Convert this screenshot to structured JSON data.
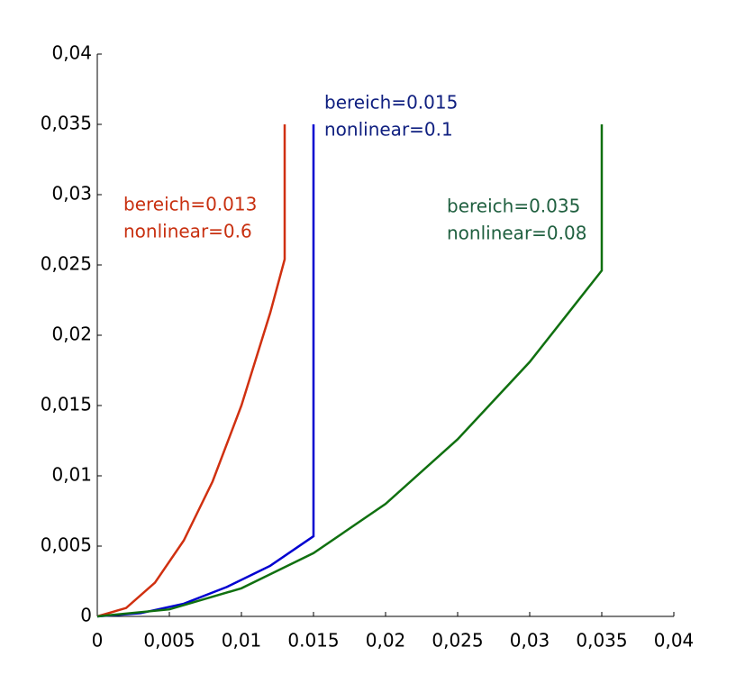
{
  "chart_data": {
    "type": "line",
    "series": [
      {
        "color": "#d03010",
        "x": [
          0,
          0.002,
          0.004,
          0.006,
          0.008,
          0.01,
          0.012,
          0.013,
          0.013
        ],
        "values": [
          0,
          0.0006,
          0.0024,
          0.0054,
          0.0096,
          0.015,
          0.0216,
          0.0254,
          0.035
        ]
      },
      {
        "color": "#0000d0",
        "x": [
          0,
          0.003,
          0.006,
          0.009,
          0.012,
          0.015,
          0.015
        ],
        "values": [
          0,
          0.00023,
          0.0009,
          0.0021,
          0.0036,
          0.0057,
          0.035
        ]
      },
      {
        "color": "#107010",
        "x": [
          0,
          0.005,
          0.01,
          0.015,
          0.02,
          0.025,
          0.03,
          0.035,
          0.035
        ],
        "values": [
          0,
          0.0005,
          0.002,
          0.0045,
          0.008,
          0.0126,
          0.0181,
          0.0246,
          0.035
        ]
      }
    ],
    "annotations": [
      {
        "lines": [
          "bereich=0.013",
          "nonlinear=0.6"
        ],
        "color": "#c83010"
      },
      {
        "lines": [
          "bereich=0.015",
          "nonlinear=0.1"
        ],
        "color": "#102080"
      },
      {
        "lines": [
          "bereich=0.035",
          "nonlinear=0.08"
        ],
        "color": "#206040"
      }
    ],
    "xlim": [
      0,
      0.04
    ],
    "ylim": [
      0,
      0.04
    ],
    "xticks": [
      0,
      {
        "value": 0.005,
        "label": "0,005"
      },
      {
        "value": 0.01,
        "label": "0,01"
      },
      0.015,
      {
        "value": 0.02,
        "label": "0,02"
      },
      {
        "value": 0.025,
        "label": "0,025"
      },
      {
        "value": 0.03,
        "label": "0,03"
      },
      {
        "value": 0.035,
        "label": "0,035"
      },
      {
        "value": 0.04,
        "label": "0,04"
      }
    ],
    "yticks": [
      0,
      {
        "value": 0.005,
        "label": "0,005"
      },
      {
        "value": 0.01,
        "label": "0,01"
      },
      {
        "value": 0.015,
        "label": "0,015"
      },
      {
        "value": 0.02,
        "label": "0,02"
      },
      {
        "value": 0.025,
        "label": "0,025"
      },
      {
        "value": 0.03,
        "label": "0,03"
      },
      {
        "value": 0.035,
        "label": "0,035"
      },
      {
        "value": 0.04,
        "label": "0,04"
      }
    ],
    "grid": false
  }
}
